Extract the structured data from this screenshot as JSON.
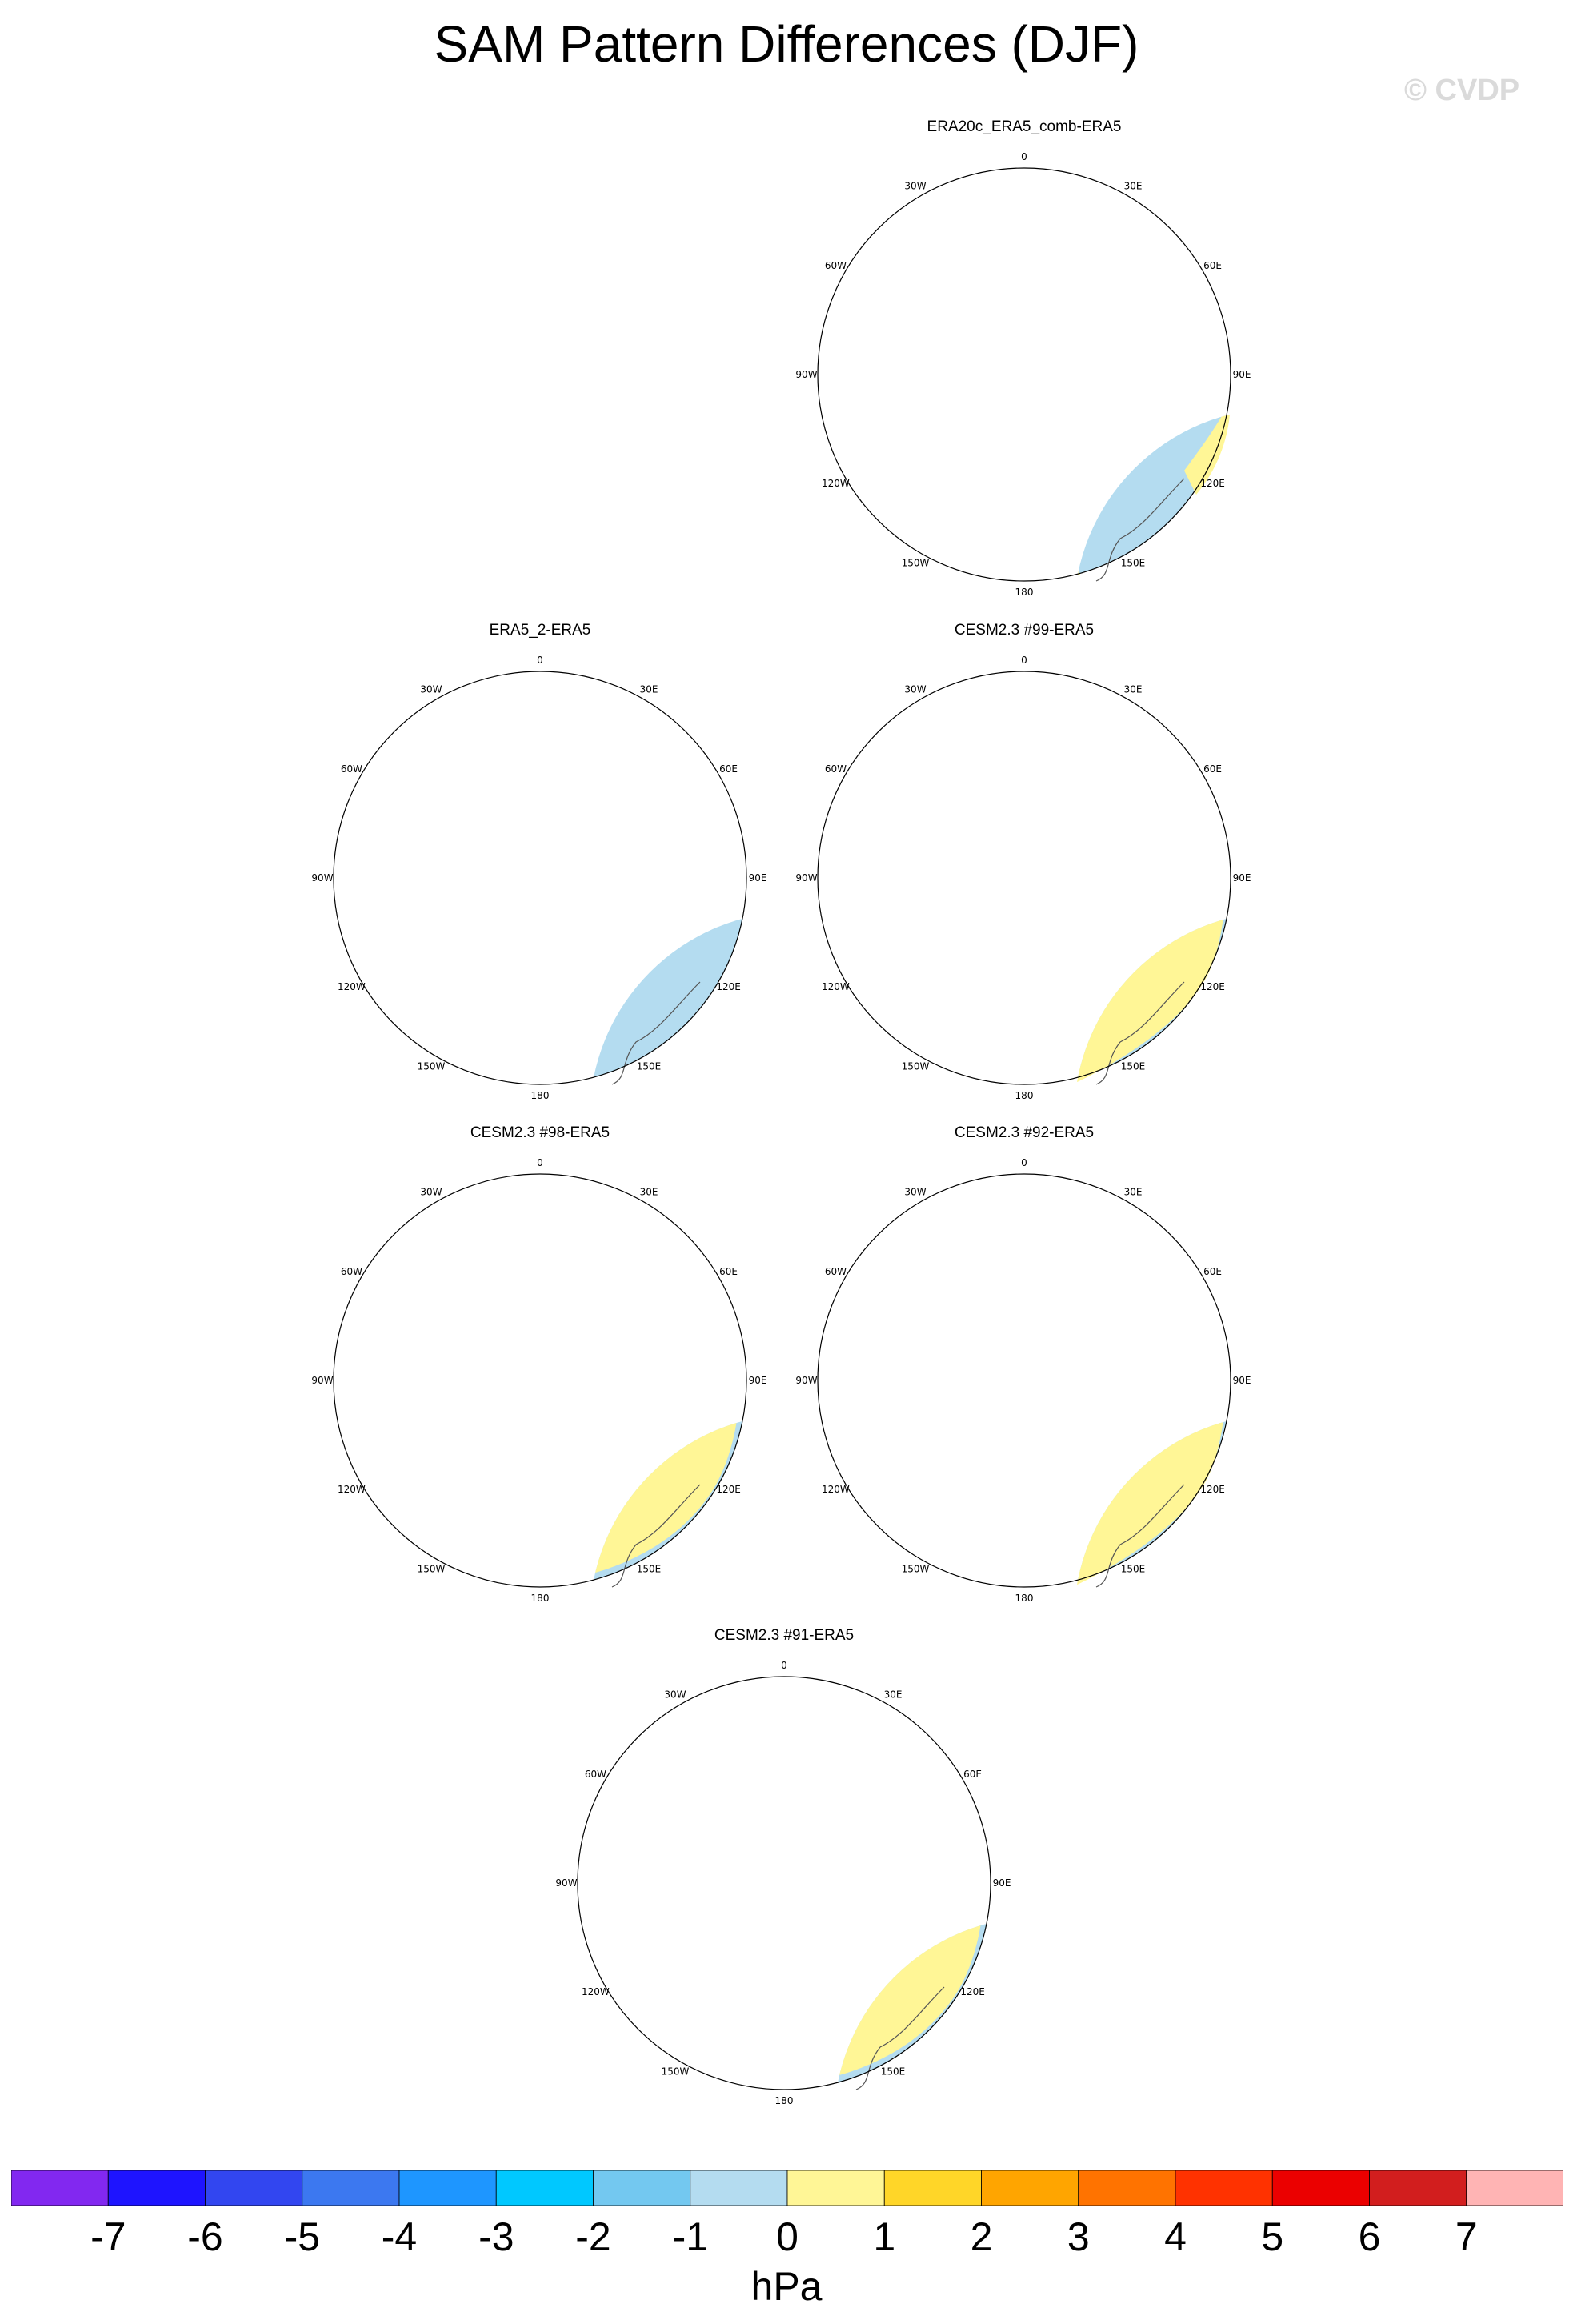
{
  "title": "SAM Pattern Differences (DJF)",
  "watermark": "© CVDP",
  "colors": {
    "ocean_background": "#b4dcf0",
    "level_neg1": "#b4dcf0",
    "level_neg2": "#73c8f0",
    "level_pos1": "#fff696",
    "level_pos2": "#ffd628",
    "coastline": "#555555"
  },
  "lon_labels": [
    "0",
    "30E",
    "60E",
    "90E",
    "120E",
    "150E",
    "180",
    "150W",
    "120W",
    "90W",
    "60W",
    "30W"
  ],
  "panels": [
    {
      "id": "p1",
      "title": "ERA20c_ERA5_comb-ERA5",
      "pattern": "weak"
    },
    {
      "id": "p2",
      "title": "ERA5_2-ERA5",
      "pattern": "ring"
    },
    {
      "id": "p3",
      "title": "CESM2.3 #99-ERA5",
      "pattern": "sam"
    },
    {
      "id": "p4",
      "title": "CESM2.3 #98-ERA5",
      "pattern": "sam-strong"
    },
    {
      "id": "p5",
      "title": "CESM2.3 #92-ERA5",
      "pattern": "sam"
    },
    {
      "id": "p6",
      "title": "CESM2.3 #91-ERA5",
      "pattern": "sam-strong"
    }
  ],
  "colorbar": {
    "unit": "hPa",
    "ticks": [
      "-7",
      "-6",
      "-5",
      "-4",
      "-3",
      "-2",
      "-1",
      "0",
      "1",
      "2",
      "3",
      "4",
      "5",
      "6",
      "7"
    ],
    "colors": [
      "#8228f0",
      "#1e14ff",
      "#3246f0",
      "#3c78f0",
      "#1e96ff",
      "#00c8ff",
      "#73c8f0",
      "#b4dcf0",
      "#fff696",
      "#ffd628",
      "#ffa500",
      "#ff7300",
      "#ff3200",
      "#eb0000",
      "#d21e1e",
      "#ffb4b4"
    ]
  }
}
